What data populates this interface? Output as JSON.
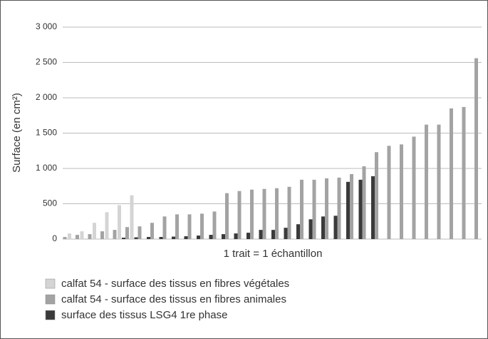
{
  "chart_data": {
    "type": "bar",
    "y_label": "Surface (en cm²)",
    "x_label": "1 trait = 1 échantillon",
    "categories": [
      null,
      null,
      null,
      null,
      null,
      null,
      null,
      null,
      null,
      null,
      null,
      null,
      null,
      null,
      null,
      null,
      null,
      null,
      null,
      null,
      null,
      null,
      null,
      null,
      null,
      null,
      null,
      null,
      null,
      null,
      null,
      null,
      null,
      null
    ],
    "series": [
      {
        "name": "calfat 54 - surface des tissus en fibres végétales",
        "color": "#d4d4d4",
        "values": [
          null,
          80,
          110,
          230,
          380,
          480,
          620,
          null,
          null,
          null,
          null,
          null,
          null,
          null,
          null,
          null,
          null,
          null,
          null,
          null,
          null,
          null,
          null,
          null,
          null,
          null,
          null,
          null,
          null,
          null,
          null,
          null,
          null,
          null
        ]
      },
      {
        "name": "calfat 54 - surface des tissus en fibres animales",
        "color": "#a3a3a3",
        "values": [
          30,
          60,
          70,
          110,
          130,
          170,
          180,
          230,
          320,
          350,
          350,
          360,
          390,
          650,
          680,
          700,
          710,
          720,
          740,
          840,
          840,
          860,
          870,
          920,
          1030,
          1230,
          1320,
          1340,
          1450,
          1620,
          1620,
          1850,
          1870,
          2560
        ]
      },
      {
        "name": "surface des tissus LSG4 1re phase",
        "color": "#3a3a3a",
        "values": [
          null,
          null,
          null,
          null,
          null,
          20,
          25,
          30,
          30,
          35,
          40,
          50,
          60,
          70,
          80,
          90,
          130,
          130,
          160,
          210,
          280,
          320,
          330,
          810,
          840,
          890,
          null,
          null,
          null,
          null,
          null,
          null,
          null,
          null
        ]
      }
    ],
    "ylim": [
      0,
      3000
    ],
    "yticks": [
      0,
      500,
      {
        "value": 1000,
        "label": "1 000"
      },
      {
        "value": 1500,
        "label": "1 500"
      },
      {
        "value": 2000,
        "label": "2 000"
      },
      {
        "value": 2500,
        "label": "2 500"
      },
      {
        "value": 3000,
        "label": "3 000"
      }
    ],
    "grid": true
  }
}
